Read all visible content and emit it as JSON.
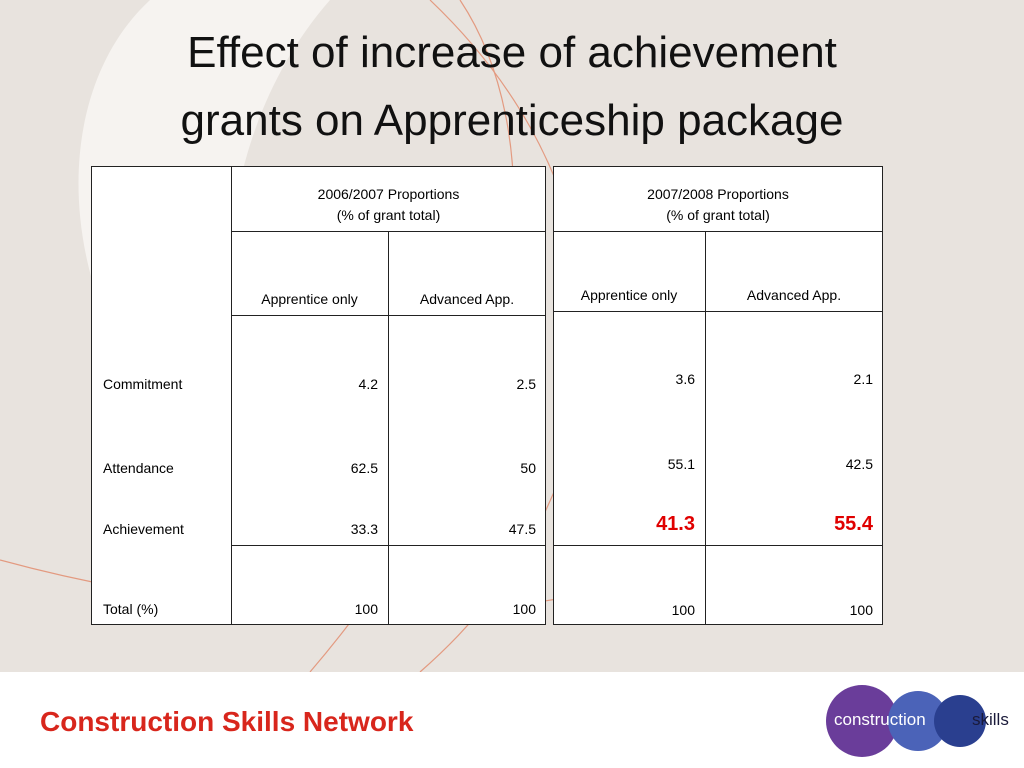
{
  "title": {
    "lines": [
      "Effect of increase of achievement",
      "grants on Apprenticeship package"
    ]
  },
  "row_labels": [
    "Commitment",
    "Attendance",
    "Achievement",
    "Total (%)"
  ],
  "tables": [
    {
      "header": [
        "2006/2007 Proportions",
        "(% of grant total)"
      ],
      "columns": [
        "Apprentice only",
        "Advanced App."
      ],
      "rows": [
        [
          4.2,
          2.5
        ],
        [
          62.5,
          50
        ],
        [
          33.3,
          47.5
        ],
        [
          100,
          100
        ]
      ]
    },
    {
      "header": [
        "2007/2008 Proportions",
        "(% of grant total)"
      ],
      "columns": [
        "Apprentice only",
        "Advanced App."
      ],
      "rows": [
        [
          3.6,
          2.1
        ],
        [
          55.1,
          42.5
        ],
        [
          41.3,
          55.4
        ],
        [
          100,
          100
        ]
      ]
    }
  ],
  "footer": "Construction Skills Network",
  "logo": {
    "left": "construction",
    "right": "skills"
  }
}
